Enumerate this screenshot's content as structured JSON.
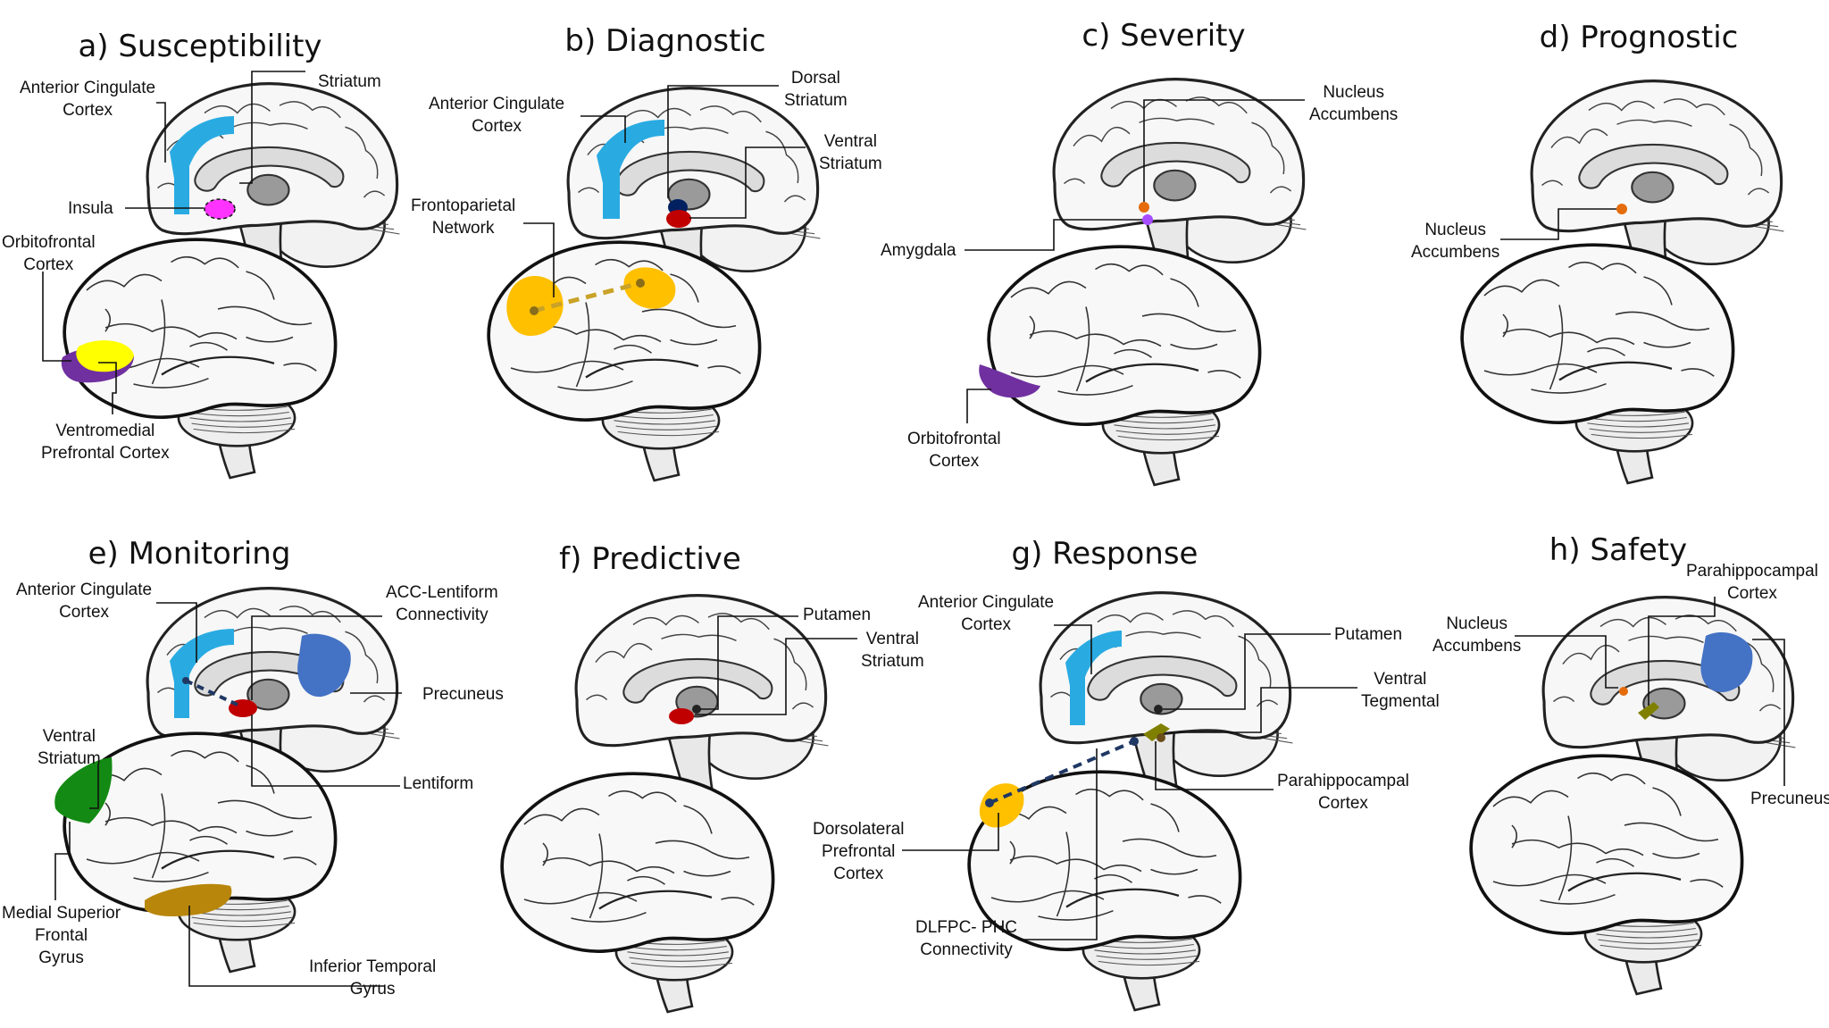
{
  "panels": {
    "a": {
      "title": "a) Susceptibility",
      "labels": {
        "acc": "Anterior Cingulate\nCortex",
        "striatum": "Striatum",
        "insula": "Insula",
        "ofc": "Orbitofrontal\nCortex",
        "vmpfc": "Ventromedial\nPrefrontal Cortex"
      }
    },
    "b": {
      "title": "b) Diagnostic",
      "labels": {
        "acc": "Anterior Cingulate\nCortex",
        "dorsal": "Dorsal\nStriatum",
        "ventral": "Ventral\nStriatum",
        "fpn": "Frontoparietal\nNetwork"
      }
    },
    "c": {
      "title": "c) Severity",
      "labels": {
        "nacc": "Nucleus\nAccumbens",
        "amygdala": "Amygdala",
        "ofc": "Orbitofrontal\nCortex"
      }
    },
    "d": {
      "title": "d) Prognostic",
      "labels": {
        "nacc": "Nucleus\nAccumbens"
      }
    },
    "e": {
      "title": "e) Monitoring",
      "labels": {
        "acc": "Anterior Cingulate\nCortex",
        "accl": "ACC-Lentiform\nConnectivity",
        "precuneus": "Precuneus",
        "vs": "Ventral\nStriatum",
        "lentiform": "Lentiform",
        "msfg": "Medial Superior\nFrontal\nGyrus",
        "itg": "Inferior Temporal\nGyrus"
      }
    },
    "f": {
      "title": "f) Predictive",
      "labels": {
        "putamen": "Putamen",
        "vs": "Ventral\nStriatum"
      }
    },
    "g": {
      "title": "g) Response",
      "labels": {
        "acc": "Anterior Cingulate\nCortex",
        "putamen": "Putamen",
        "vt": "Ventral\nTegmental",
        "phc": "Parahippocampal\nCortex",
        "dlpfc": "Dorsolateral\nPrefrontal\nCortex",
        "conn": "DLFPC- PHC\nConnectivity"
      }
    },
    "h": {
      "title": "h) Safety",
      "labels": {
        "phc": "Parahippocampal\nCortex",
        "nacc": "Nucleus\nAccumbens",
        "precuneus": "Precuneus"
      }
    }
  },
  "colors": {
    "acc": "#29abe2",
    "insula": "#ff33ff",
    "vmpfc": "#ffff00",
    "ofc": "#7030a0",
    "striatum_red": "#c00000",
    "striatum_blue": "#002060",
    "fpn": "#ffc000",
    "nacc": "#e46c0a",
    "amygdala": "#a64dff",
    "precuneus": "#4472c4",
    "msfg": "#138a13",
    "itg": "#b8860b",
    "vt": "#808000",
    "conn": "#1f3864"
  }
}
